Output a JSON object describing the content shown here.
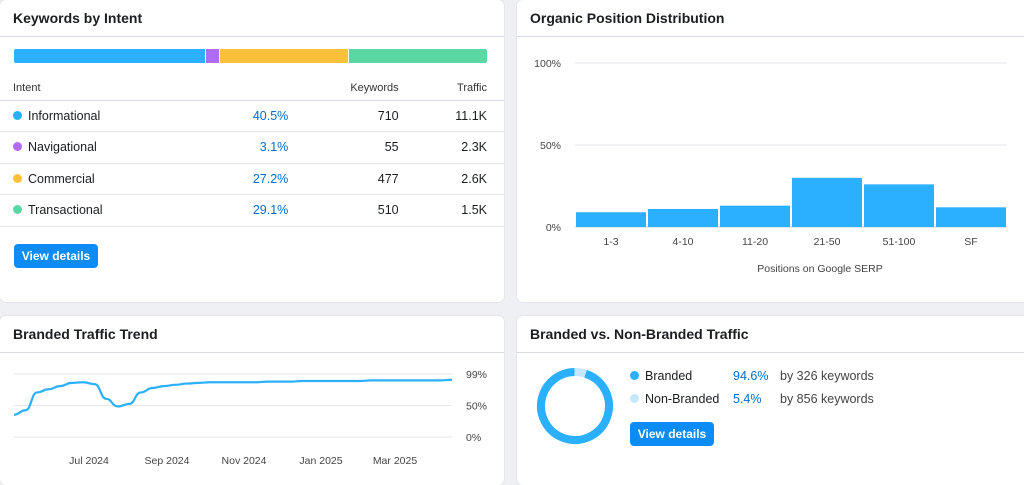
{
  "keywords_by_intent": {
    "title": "Keywords by Intent",
    "headers": {
      "intent": "Intent",
      "keywords": "Keywords",
      "traffic": "Traffic"
    },
    "bar": [
      {
        "share": 40.5,
        "color": "#2bb0ff"
      },
      {
        "share": 3.1,
        "color": "#b06bf7"
      },
      {
        "share": 27.2,
        "color": "#ffc13b"
      },
      {
        "share": 29.1,
        "color": "#5ad8a3"
      }
    ],
    "rows": [
      {
        "name": "Informational",
        "pct": "40.5%",
        "keywords": "710",
        "traffic": "11.1K",
        "color": "#2bb0ff"
      },
      {
        "name": "Navigational",
        "pct": "3.1%",
        "keywords": "55",
        "traffic": "2.3K",
        "color": "#b06bf7"
      },
      {
        "name": "Commercial",
        "pct": "27.2%",
        "keywords": "477",
        "traffic": "2.6K",
        "color": "#ffc13b"
      },
      {
        "name": "Transactional",
        "pct": "29.1%",
        "keywords": "510",
        "traffic": "1.5K",
        "color": "#5ad8a3"
      }
    ],
    "button": "View details"
  },
  "organic_position": {
    "title": "Organic Position Distribution",
    "chart_data": {
      "type": "bar",
      "categories": [
        "1-3",
        "4-10",
        "11-20",
        "21-50",
        "51-100",
        "SF"
      ],
      "values": [
        9,
        11,
        13,
        30,
        26,
        12
      ],
      "yticks": [
        "100%",
        "50%",
        "0%"
      ],
      "ylim": [
        0,
        100
      ],
      "xlabel": "Positions on Google SERP",
      "color": "#2bb0ff"
    }
  },
  "branded_trend": {
    "title": "Branded Traffic Trend",
    "chart_data": {
      "type": "line",
      "x_ticks": [
        "Jul 2024",
        "Sep 2024",
        "Nov 2024",
        "Jan 2025",
        "Mar 2025"
      ],
      "yticks": [
        "99%",
        "50%",
        "0%"
      ],
      "ylim": [
        0,
        99
      ],
      "series": [
        {
          "values": [
            35,
            42,
            70,
            75,
            80,
            85,
            86,
            83,
            60,
            48,
            52,
            70,
            77,
            80,
            82,
            84,
            85,
            86,
            86,
            86,
            86,
            86,
            87,
            87,
            87,
            88,
            88,
            88,
            88,
            88,
            88,
            89,
            89,
            89,
            89,
            89,
            89,
            89,
            90
          ]
        }
      ],
      "color": "#2bb0ff"
    }
  },
  "branded_vs_non": {
    "title": "Branded vs. Non-Branded Traffic",
    "chart_data": {
      "type": "pie",
      "slices": [
        {
          "label": "Branded",
          "value": 94.6,
          "color": "#2bb0ff"
        },
        {
          "label": "Non-Branded",
          "value": 5.4,
          "color": "#c6e6fb"
        }
      ]
    },
    "rows": [
      {
        "label": "Branded",
        "pct": "94.6%",
        "keywords": "by 326 keywords",
        "color": "#2bb0ff"
      },
      {
        "label": "Non-Branded",
        "pct": "5.4%",
        "keywords": "by 856 keywords",
        "color": "#c6e6fb"
      }
    ],
    "button": "View details"
  }
}
